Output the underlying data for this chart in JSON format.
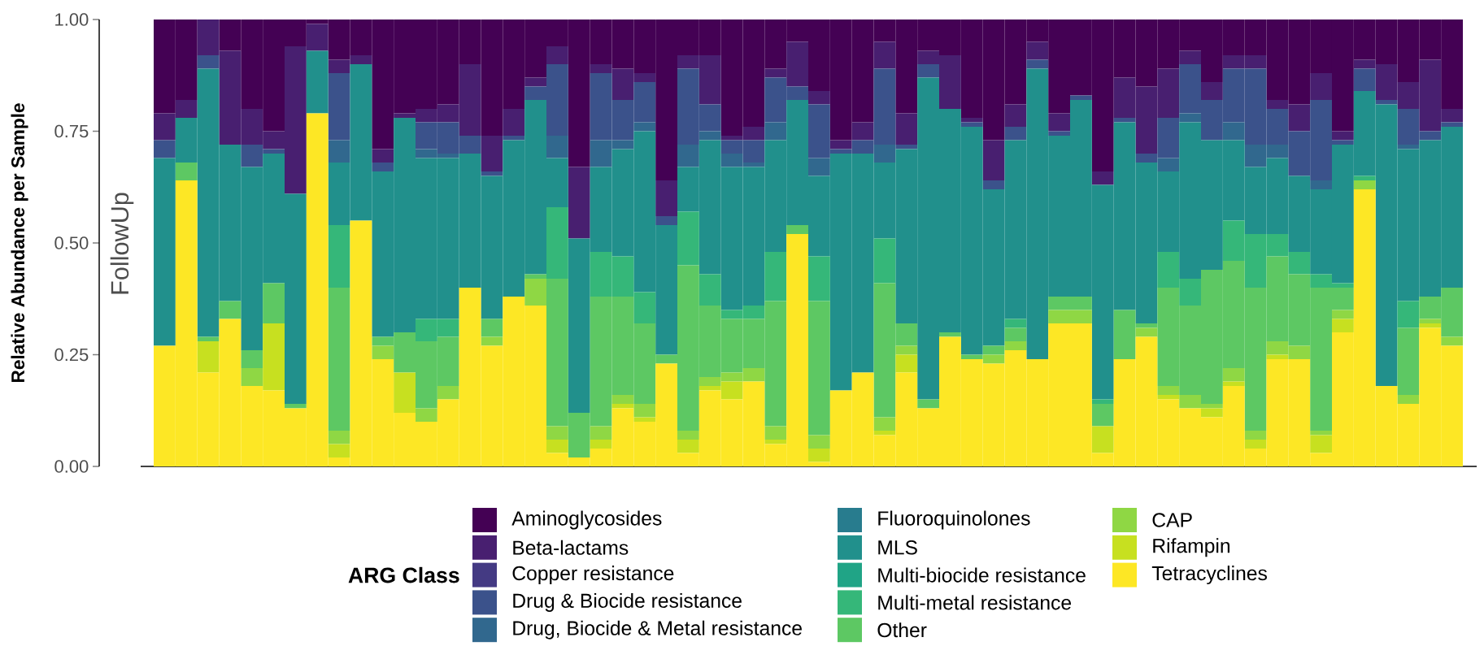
{
  "chart_data": {
    "type": "bar",
    "stacked": true,
    "ylabel": "Relative Abundance per Sample",
    "legend": "bottom",
    "legend_title": "ARG Class",
    "annotations": [
      "FollowUp"
    ],
    "categories": [
      null,
      null,
      null,
      null,
      null,
      null,
      null,
      null,
      null,
      null,
      null,
      null,
      null,
      null,
      null,
      null,
      null,
      null,
      null,
      null,
      null,
      null,
      null,
      null,
      null,
      null,
      null,
      null,
      null,
      null,
      null,
      null,
      null,
      null,
      null,
      null,
      null,
      null,
      null,
      null,
      null,
      null,
      null,
      null,
      null,
      null,
      null,
      null,
      null,
      null,
      null,
      null,
      null,
      null,
      null,
      null,
      null,
      null,
      null,
      null
    ],
    "ylim": [
      0,
      1
    ],
    "yticks": [
      {
        "value": 0,
        "label": "0.00"
      },
      {
        "value": 0.25,
        "label": "0.25"
      },
      {
        "value": 0.5,
        "label": "0.50"
      },
      {
        "value": 0.75,
        "label": "0.75"
      },
      {
        "value": 1,
        "label": "1.00"
      }
    ],
    "series": [
      {
        "name": "Tetracyclines",
        "color": "#fde725",
        "values": [
          0.27,
          0.64,
          0.21,
          0.33,
          0.18,
          0.17,
          0.13,
          0.79,
          0.02,
          0.55,
          0.24,
          0.12,
          0.1,
          0.15,
          0.4,
          0.27,
          0.38,
          0.36,
          0.03,
          0.02,
          0.04,
          0.13,
          0.1,
          0.23,
          0.03,
          0.17,
          0.15,
          0.19,
          0.05,
          0.52,
          0.01,
          0.17,
          0.21,
          0.07,
          0.21,
          0.13,
          0.29,
          0.24,
          0.23,
          0.26,
          0.24,
          0.32,
          0.32,
          0.03,
          0.24,
          0.29,
          0.15,
          0.13,
          0.11,
          0.18,
          0.04,
          0.24,
          0.24,
          0.03,
          0.3,
          0.62,
          0.18,
          0.14,
          0.31,
          0.27
        ]
      },
      {
        "name": "Rifampin",
        "color": "#c7e020",
        "values": [
          0,
          0,
          0.07,
          0,
          0,
          0.15,
          0,
          0,
          0.03,
          0,
          0,
          0.09,
          0,
          0,
          0,
          0,
          0,
          0,
          0.03,
          0,
          0.02,
          0.01,
          0.01,
          0,
          0.03,
          0.01,
          0.04,
          0,
          0.01,
          0,
          0.03,
          0,
          0,
          0.01,
          0.04,
          0,
          0,
          0,
          0,
          0,
          0,
          0,
          0,
          0.06,
          0,
          0,
          0.01,
          0,
          0.02,
          0.01,
          0.02,
          0.01,
          0,
          0.04,
          0.03,
          0,
          0,
          0,
          0.01,
          0
        ]
      },
      {
        "name": "CAP",
        "color": "#8fd744",
        "values": [
          0,
          0,
          0,
          0,
          0.04,
          0,
          0,
          0,
          0.03,
          0,
          0.03,
          0,
          0.03,
          0.03,
          0,
          0.02,
          0,
          0.06,
          0.03,
          0,
          0.03,
          0.02,
          0.03,
          0,
          0.02,
          0.02,
          0.02,
          0.03,
          0.03,
          0,
          0.03,
          0,
          0,
          0.03,
          0.02,
          0,
          0,
          0,
          0.02,
          0.02,
          0,
          0.03,
          0.03,
          0,
          0,
          0.02,
          0.02,
          0.03,
          0.01,
          0.03,
          0.02,
          0.03,
          0.03,
          0.01,
          0.02,
          0.02,
          0,
          0.02,
          0.01,
          0.02
        ]
      },
      {
        "name": "Other",
        "color": "#5dc863",
        "values": [
          0,
          0.04,
          0.01,
          0.04,
          0.04,
          0.09,
          0.01,
          0,
          0.32,
          0,
          0.02,
          0.09,
          0.15,
          0.11,
          0,
          0.04,
          0,
          0.01,
          0.33,
          0.1,
          0.29,
          0.22,
          0.18,
          0.02,
          0.37,
          0.16,
          0.12,
          0.11,
          0.28,
          0.02,
          0.3,
          0,
          0,
          0.3,
          0.05,
          0.02,
          0.01,
          0.01,
          0.02,
          0.03,
          0,
          0.03,
          0.03,
          0.05,
          0.11,
          0.01,
          0.22,
          0.2,
          0.3,
          0.24,
          0.32,
          0.19,
          0.16,
          0.32,
          0.05,
          0,
          0,
          0.15,
          0.05,
          0.11
        ]
      },
      {
        "name": "Multi-metal resistance",
        "color": "#35b779",
        "values": [
          0,
          0,
          0,
          0,
          0,
          0,
          0,
          0,
          0.14,
          0,
          0,
          0,
          0.05,
          0.04,
          0,
          0,
          0,
          0,
          0.16,
          0,
          0.1,
          0.09,
          0.07,
          0,
          0.12,
          0.07,
          0.02,
          0.03,
          0.11,
          0,
          0.1,
          0,
          0,
          0.1,
          0,
          0,
          0,
          0,
          0,
          0.02,
          0,
          0,
          0,
          0.01,
          0,
          0,
          0.08,
          0.06,
          0,
          0.09,
          0.12,
          0.05,
          0.05,
          0.03,
          0.01,
          0.01,
          0,
          0.06,
          0,
          0
        ]
      },
      {
        "name": "Multi-biocide resistance",
        "color": "#20a486",
        "values": [
          0,
          0,
          0,
          0,
          0,
          0,
          0,
          0,
          0,
          0,
          0,
          0,
          0,
          0,
          0,
          0,
          0,
          0,
          0,
          0,
          0,
          0,
          0,
          0,
          0,
          0,
          0,
          0,
          0,
          0,
          0,
          0,
          0,
          0,
          0,
          0,
          0,
          0,
          0,
          0,
          0,
          0,
          0,
          0,
          0,
          0,
          0,
          0,
          0,
          0,
          0,
          0,
          0,
          0,
          0,
          0,
          0,
          0,
          0,
          0
        ]
      },
      {
        "name": "MLS",
        "color": "#21908c",
        "values": [
          0.42,
          0.1,
          0.6,
          0.35,
          0.41,
          0.29,
          0.47,
          0.14,
          0.14,
          0.35,
          0.37,
          0.48,
          0.36,
          0.36,
          0.3,
          0.32,
          0.35,
          0.39,
          0.11,
          0.39,
          0.19,
          0.24,
          0.36,
          0.29,
          0.1,
          0.3,
          0.32,
          0.31,
          0.25,
          0.28,
          0.18,
          0.53,
          0.49,
          0.17,
          0.39,
          0.72,
          0.5,
          0.51,
          0.35,
          0.4,
          0.65,
          0.36,
          0.44,
          0.48,
          0.42,
          0.36,
          0.18,
          0.35,
          0.29,
          0.18,
          0.15,
          0.17,
          0.17,
          0.19,
          0.31,
          0.19,
          0.63,
          0.34,
          0.35,
          0.36
        ]
      },
      {
        "name": "Fluoroquinolones",
        "color": "#287c8e",
        "values": [
          0,
          0,
          0,
          0,
          0,
          0,
          0,
          0,
          0,
          0,
          0,
          0,
          0,
          0,
          0,
          0,
          0,
          0,
          0,
          0,
          0,
          0,
          0,
          0,
          0,
          0,
          0,
          0,
          0,
          0,
          0,
          0,
          0,
          0,
          0,
          0,
          0,
          0,
          0,
          0,
          0,
          0,
          0,
          0,
          0,
          0,
          0,
          0,
          0,
          0,
          0,
          0,
          0,
          0,
          0,
          0,
          0,
          0,
          0,
          0
        ]
      },
      {
        "name": "Drug, Biocide & Metal resistance",
        "color": "#31688e",
        "values": [
          0,
          0,
          0,
          0,
          0,
          0,
          0,
          0,
          0.05,
          0,
          0,
          0,
          0.02,
          0.01,
          0,
          0,
          0,
          0,
          0.05,
          0,
          0.06,
          0.02,
          0.02,
          0,
          0.05,
          0.02,
          0.03,
          0.01,
          0.04,
          0,
          0.04,
          0,
          0,
          0.04,
          0,
          0,
          0,
          0,
          0,
          0,
          0,
          0,
          0,
          0,
          0,
          0,
          0.03,
          0.02,
          0,
          0.04,
          0.05,
          0.03,
          0,
          0.02,
          0,
          0,
          0,
          0.01,
          0,
          0
        ]
      },
      {
        "name": "Drug & Biocide resistance",
        "color": "#3b528b",
        "values": [
          0.04,
          0,
          0.03,
          0,
          0.05,
          0.01,
          0,
          0,
          0.15,
          0,
          0.02,
          0,
          0.06,
          0.07,
          0.04,
          0.01,
          0.01,
          0.03,
          0.16,
          0,
          0.15,
          0.09,
          0.09,
          0.02,
          0.17,
          0.06,
          0.03,
          0.05,
          0.1,
          0.03,
          0.12,
          0.01,
          0.03,
          0.17,
          0.01,
          0.03,
          0,
          0.01,
          0.02,
          0.03,
          0.02,
          0.01,
          0.01,
          0,
          0.01,
          0.02,
          0.09,
          0.11,
          0.09,
          0.12,
          0.17,
          0.08,
          0.1,
          0.18,
          0.01,
          0.05,
          0.01,
          0.08,
          0.02,
          0.01
        ]
      },
      {
        "name": "Copper resistance",
        "color": "#443a83",
        "values": [
          0,
          0,
          0,
          0,
          0,
          0,
          0,
          0,
          0,
          0,
          0,
          0,
          0,
          0,
          0,
          0,
          0,
          0,
          0,
          0,
          0,
          0,
          0,
          0,
          0,
          0,
          0,
          0,
          0,
          0,
          0,
          0,
          0,
          0,
          0,
          0,
          0,
          0,
          0,
          0,
          0,
          0,
          0,
          0,
          0,
          0,
          0,
          0,
          0,
          0,
          0,
          0,
          0,
          0,
          0,
          0,
          0,
          0,
          0,
          0
        ]
      },
      {
        "name": "Beta-lactams",
        "color": "#481f70",
        "values": [
          0.06,
          0.04,
          0.08,
          0.21,
          0.08,
          0.04,
          0.33,
          0.06,
          0.03,
          0.02,
          0.03,
          0.01,
          0.03,
          0.04,
          0.16,
          0.08,
          0.06,
          0.02,
          0.04,
          0.16,
          0.02,
          0.07,
          0.02,
          0.08,
          0.03,
          0.11,
          0.01,
          0.03,
          0.02,
          0.1,
          0.03,
          0.02,
          0.04,
          0.06,
          0.07,
          0.03,
          0.12,
          0.01,
          0.09,
          0.05,
          0.04,
          0.04,
          0,
          0.03,
          0.09,
          0.15,
          0.11,
          0.03,
          0.04,
          0.03,
          0.03,
          0.02,
          0.06,
          0.06,
          0.02,
          0.02,
          0.08,
          0.06,
          0.16,
          0.03
        ]
      },
      {
        "name": "Aminoglycosides",
        "color": "#440154",
        "values": [
          0.21,
          0.18,
          0,
          0.07,
          0.2,
          0.25,
          0.06,
          0.01,
          0.09,
          0.08,
          0.29,
          0.21,
          0.2,
          0.19,
          0.1,
          0.26,
          0.2,
          0.13,
          0.06,
          0.33,
          0.1,
          0.11,
          0.12,
          0.36,
          0.08,
          0.08,
          0.26,
          0.24,
          0.11,
          0.05,
          0.16,
          0.27,
          0.23,
          0.05,
          0.21,
          0.07,
          0.08,
          0.22,
          0.27,
          0.19,
          0.05,
          0.21,
          0.17,
          0.34,
          0.13,
          0.15,
          0.11,
          0.07,
          0.14,
          0.08,
          0.08,
          0.18,
          0.19,
          0.12,
          0.25,
          0.09,
          0.1,
          0.14,
          0.09,
          0.2
        ]
      }
    ]
  }
}
